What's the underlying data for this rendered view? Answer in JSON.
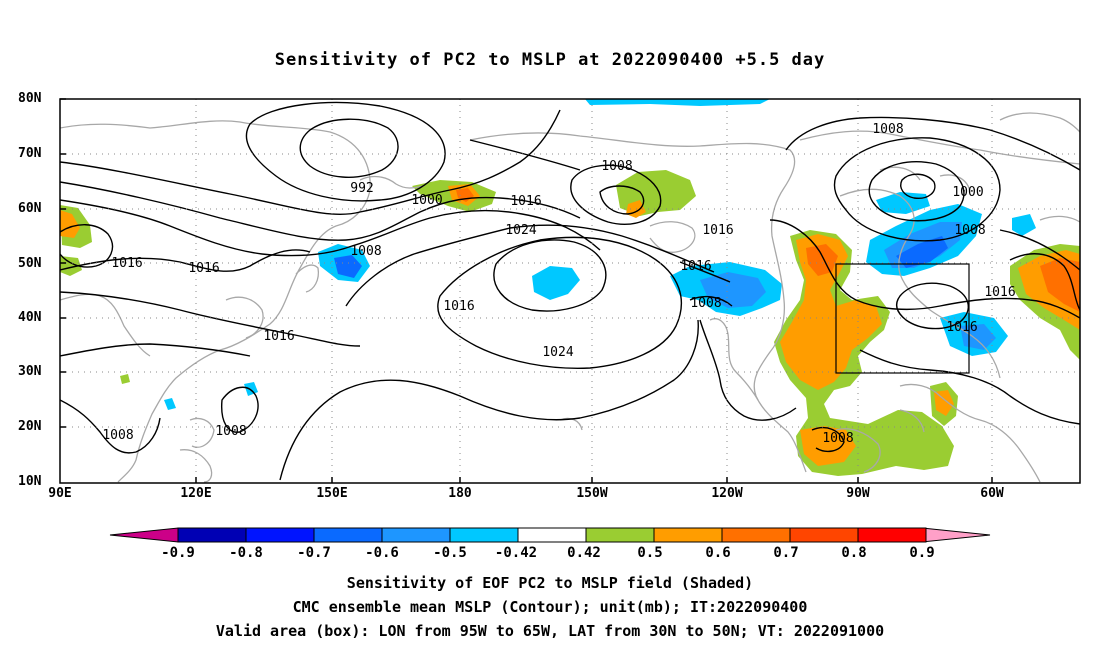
{
  "title": "Sensitivity of PC2 to MSLP at 2022090400 +5.5 day",
  "lat_labels": [
    "80N",
    "70N",
    "60N",
    "50N",
    "40N",
    "30N",
    "20N",
    "10N"
  ],
  "lon_labels": [
    "90E",
    "120E",
    "150E",
    "180",
    "150W",
    "120W",
    "90W",
    "60W"
  ],
  "contour_labels": [
    {
      "text": "992"
    },
    {
      "text": "1000"
    },
    {
      "text": "1008"
    },
    {
      "text": "1016"
    },
    {
      "text": "1016"
    },
    {
      "text": "1016"
    },
    {
      "text": "1024"
    },
    {
      "text": "1016"
    },
    {
      "text": "1024"
    },
    {
      "text": "1008"
    },
    {
      "text": "1016"
    },
    {
      "text": "1016"
    },
    {
      "text": "1008"
    },
    {
      "text": "1008"
    },
    {
      "text": "1000"
    },
    {
      "text": "1008"
    },
    {
      "text": "1016"
    },
    {
      "text": "1016"
    },
    {
      "text": "1008"
    },
    {
      "text": "1008"
    },
    {
      "text": "1008"
    },
    {
      "text": "1016"
    }
  ],
  "colorbar": {
    "labels": [
      "-0.9",
      "-0.8",
      "-0.7",
      "-0.6",
      "-0.5",
      "-0.42",
      "0.42",
      "0.5",
      "0.6",
      "0.7",
      "0.8",
      "0.9"
    ],
    "colors": [
      "#0000b4",
      "#0014ff",
      "#0a6aff",
      "#1e96ff",
      "#00c8ff",
      "#ffffff",
      "#9acd32",
      "#ff9d00",
      "#ff7000",
      "#ff4500",
      "#ff0000"
    ],
    "low_end_color": "#cc0088",
    "high_end_color": "#ffa0c8"
  },
  "valid_box": {
    "lon": [
      "95W",
      "65W"
    ],
    "lat": [
      "30N",
      "50N"
    ]
  },
  "captions": [
    "Sensitivity of EOF PC2 to MSLP field (Shaded)",
    "CMC ensemble mean MSLP (Contour); unit(mb); IT:2022090400",
    "Valid area (box): LON from 95W to 65W, LAT from 30N to 50N; VT: 2022091000"
  ]
}
